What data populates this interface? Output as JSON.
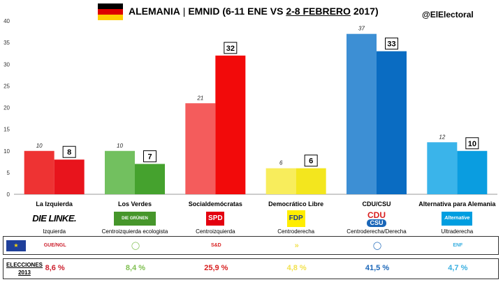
{
  "header": {
    "title_main": "ALEMANIA",
    "title_sep": " | ",
    "title_rest": "EMNID (6-11 ENE VS ",
    "title_underlined": "2-8 FEBRERO",
    "title_end": " 2017)",
    "handle": "@ElElectoral",
    "flag_colors": [
      "#000000",
      "#dd0000",
      "#ffce00"
    ]
  },
  "chart_data": {
    "type": "bar",
    "title": "ALEMANIA | EMNID (6-11 ENE VS 2-8 FEBRERO 2017)",
    "ylim": [
      0,
      40
    ],
    "yticks": [
      0,
      5,
      10,
      15,
      20,
      25,
      30,
      35,
      40
    ],
    "grid": false,
    "categories": [
      "La Izquierda",
      "Los Verdes",
      "Socialdemócratas",
      "Democrático Libre",
      "CDU/CSU",
      "Alternativa para Alemania"
    ],
    "series": [
      {
        "values": [
          10,
          10,
          21,
          6,
          37,
          12
        ]
      },
      {
        "values": [
          8,
          7,
          32,
          6,
          33,
          10
        ]
      }
    ],
    "previous_labels": [
      "10",
      "10",
      "21",
      "6",
      "37",
      "12"
    ],
    "current_labels": [
      "8",
      "7",
      "32",
      "6",
      "33",
      "10"
    ],
    "colors_previous": [
      "#ee3333",
      "#72c05f",
      "#f45c5c",
      "#f8ed5c",
      "#3d8fd4",
      "#3ab4ea"
    ],
    "colors_current": [
      "#e8141c",
      "#45a22e",
      "#f20a0a",
      "#f3e61e",
      "#0a6cc2",
      "#0a9de0"
    ]
  },
  "parties": [
    {
      "logo_text": "DIE LINKE.",
      "ideology": "Izquierda",
      "eu_group": "GUE/NGL",
      "election_2013": "8,6 %",
      "color": "#cc1f2d"
    },
    {
      "logo_text": "DIE GRÜNEN",
      "ideology": "Centroizquierda ecologista",
      "eu_group": "",
      "election_2013": "8,4 %",
      "color": "#7fbf50"
    },
    {
      "logo_text": "SPD",
      "ideology": "Centroizquierda",
      "eu_group": "S&D",
      "election_2013": "25,9 %",
      "color": "#d82020"
    },
    {
      "logo_text": "FDP",
      "ideology": "Centroderecha",
      "eu_group": "",
      "election_2013": "4,8 %",
      "color": "#f2e14e"
    },
    {
      "logo_text_top": "CDU",
      "logo_text_bottom": "CSU",
      "ideology": "Centroderecha/Derecha",
      "eu_group": "",
      "election_2013": "41,5 %",
      "color": "#1a66b8"
    },
    {
      "logo_text": "Alternative",
      "ideology": "Ultraderecha",
      "eu_group": "ENF",
      "election_2013": "4,7 %",
      "color": "#37aee0"
    }
  ],
  "elections": {
    "label_line1": "ELECCIONES",
    "label_line2": "2013"
  }
}
